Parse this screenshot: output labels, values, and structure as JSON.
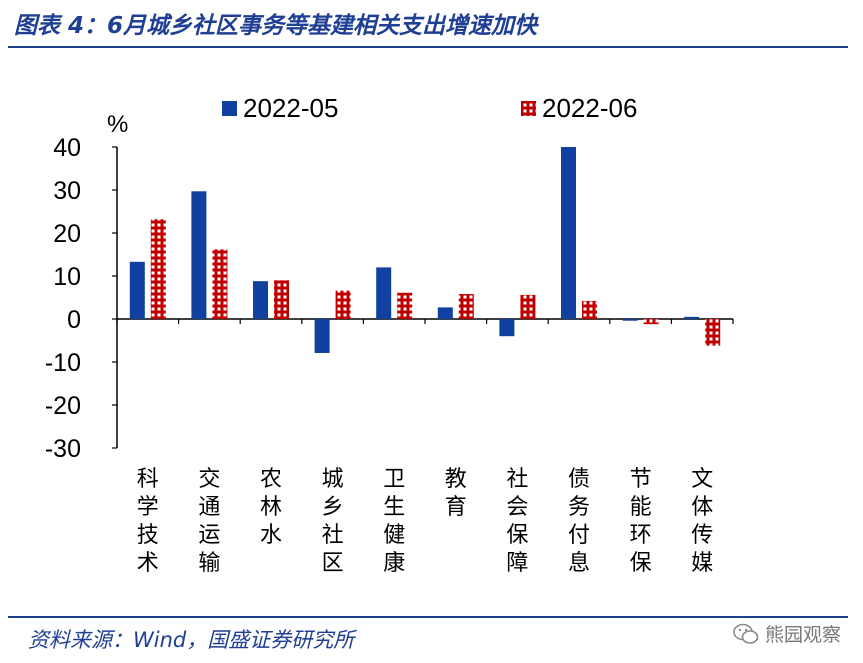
{
  "header": {
    "title": "图表 4：6月城乡社区事务等基建相关支出增速加快"
  },
  "footer": {
    "source": "资料来源：Wind，国盛证券研究所",
    "watermark": "熊园观察"
  },
  "colors": {
    "series1": "#1040a0",
    "series2": "#c00000",
    "rule": "#1f3f94"
  },
  "chart_data": {
    "type": "bar",
    "title": "6月城乡社区事务等基建相关支出增速加快",
    "ylabel": "%",
    "ylim": [
      -30,
      40
    ],
    "yticks": [
      40,
      30,
      20,
      10,
      0,
      -10,
      -20,
      -30
    ],
    "categories": [
      "科学技术",
      "交通运输",
      "农林水",
      "城乡社区",
      "卫生健康",
      "教育",
      "社会保障",
      "债务付息",
      "节能环保",
      "文体传媒"
    ],
    "series": [
      {
        "name": "2022-05",
        "values": [
          13.3,
          29.7,
          8.8,
          -7.9,
          12.0,
          2.7,
          -4.0,
          40.0,
          -0.4,
          0.5
        ]
      },
      {
        "name": "2022-06",
        "values": [
          23.2,
          16.2,
          9.0,
          6.6,
          6.1,
          5.8,
          5.6,
          4.2,
          -1.2,
          -6.2
        ]
      }
    ]
  }
}
